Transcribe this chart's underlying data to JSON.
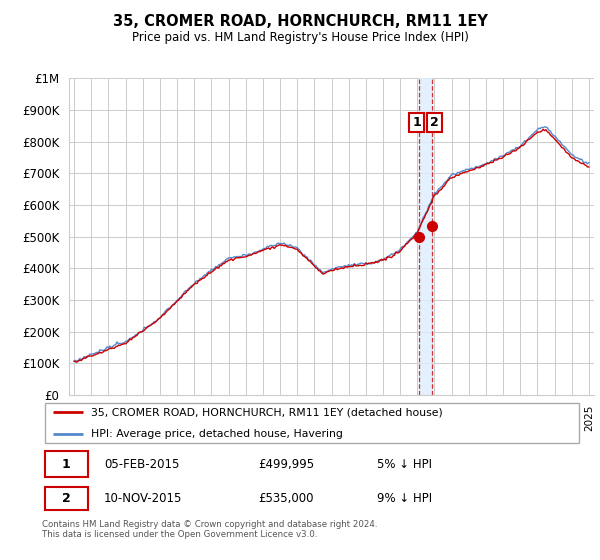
{
  "title": "35, CROMER ROAD, HORNCHURCH, RM11 1EY",
  "subtitle": "Price paid vs. HM Land Registry's House Price Index (HPI)",
  "ylabel_ticks": [
    "£0",
    "£100K",
    "£200K",
    "£300K",
    "£400K",
    "£500K",
    "£600K",
    "£700K",
    "£800K",
    "£900K",
    "£1M"
  ],
  "ytick_values": [
    0,
    100000,
    200000,
    300000,
    400000,
    500000,
    600000,
    700000,
    800000,
    900000,
    1000000
  ],
  "ylim": [
    0,
    1000000
  ],
  "xlim_left": 1994.7,
  "xlim_right": 2025.3,
  "legend_entry1": "35, CROMER ROAD, HORNCHURCH, RM11 1EY (detached house)",
  "legend_entry2": "HPI: Average price, detached house, Havering",
  "sale1_label": "1",
  "sale1_date": "05-FEB-2015",
  "sale1_price": "£499,995",
  "sale1_hpi": "5% ↓ HPI",
  "sale1_x": 2015.09,
  "sale1_y": 499995,
  "sale2_label": "2",
  "sale2_date": "10-NOV-2015",
  "sale2_price": "£535,000",
  "sale2_hpi": "9% ↓ HPI",
  "sale2_x": 2015.86,
  "sale2_y": 535000,
  "vline1_x": 2015.09,
  "vline2_x": 2015.86,
  "footer": "Contains HM Land Registry data © Crown copyright and database right 2024.\nThis data is licensed under the Open Government Licence v3.0.",
  "hpi_color": "#5588cc",
  "sale_color": "#cc0000",
  "vline_color": "#cc0000",
  "shade_color": "#ddeeff",
  "background_color": "#ffffff",
  "grid_color": "#cccccc"
}
